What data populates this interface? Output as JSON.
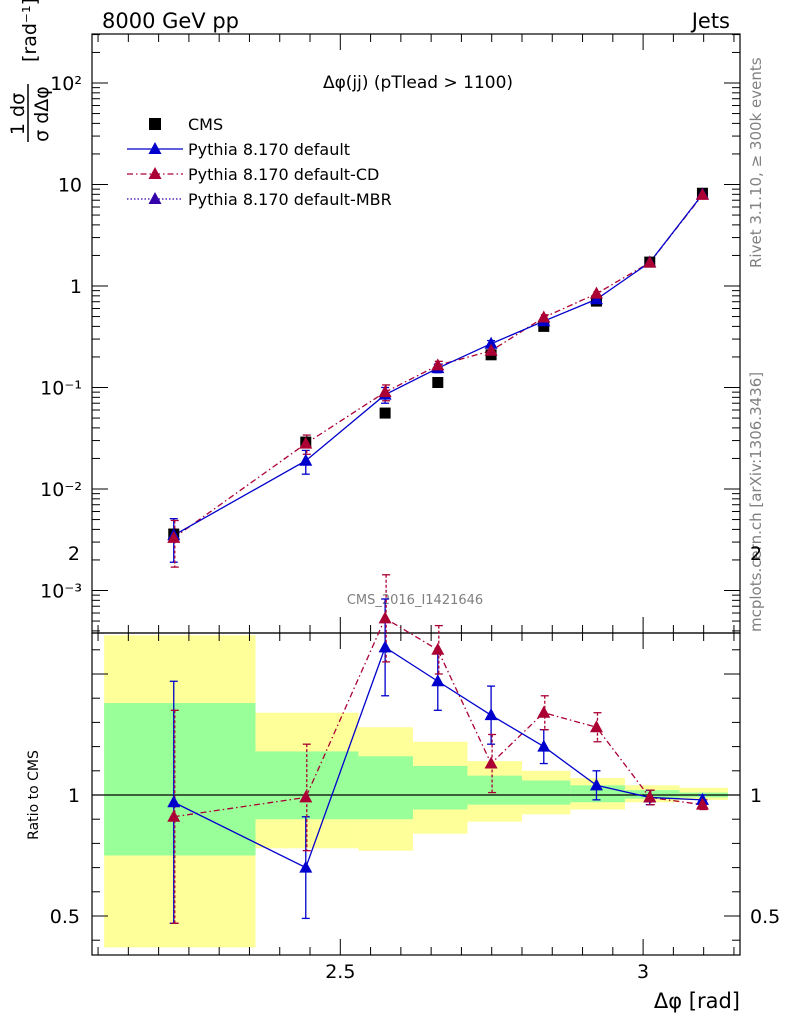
{
  "header": {
    "left": "8000 GeV pp",
    "right": "Jets"
  },
  "side_text": {
    "rivet": "Rivet 3.1.10, ≥ 300k events",
    "mcplots": "mcplots.cern.ch [arXiv:1306.3436]"
  },
  "watermark": "CMS_2016_I1421646",
  "colors": {
    "cms": "#000000",
    "default": "#0000cc",
    "cd": "#aa0033",
    "mbr": "#3300aa",
    "band_inner": "#99ff99",
    "band_outer": "#ffff99"
  },
  "chart_data": [
    {
      "type": "scatter",
      "panel": "main",
      "title": "Δφ(jj) (pTlead >  1100)",
      "ylabel": "1/σ dσ/dΔφ [rad⁻¹]",
      "yscale": "log",
      "ylim": [
        0.0005,
        300
      ],
      "xlim": [
        2.09,
        3.16
      ],
      "ytick_labels": [
        "10⁻³",
        "10⁻²",
        "10⁻¹",
        "1",
        "10",
        "10²"
      ],
      "legend_position": "top-left",
      "series": [
        {
          "name": "CMS",
          "style": "markers",
          "x": [
            2.225,
            2.443,
            2.574,
            2.661,
            2.749,
            2.836,
            2.923,
            3.011,
            3.098
          ],
          "y": [
            0.0036,
            0.029,
            0.056,
            0.112,
            0.21,
            0.4,
            0.71,
            1.72,
            8.2
          ]
        },
        {
          "name": "Pythia 8.170 default",
          "style": "line",
          "x": [
            2.225,
            2.443,
            2.574,
            2.661,
            2.749,
            2.836,
            2.923,
            3.011,
            3.098
          ],
          "y": [
            0.0035,
            0.019,
            0.085,
            0.155,
            0.27,
            0.45,
            0.74,
            1.71,
            8.0
          ],
          "yerr": [
            0.0016,
            0.005,
            0.015,
            0.015,
            0.02,
            0.03,
            0.04,
            0.05,
            0.15
          ]
        },
        {
          "name": "Pythia 8.170 default-CD",
          "style": "dashdot",
          "x": [
            2.225,
            2.443,
            2.574,
            2.661,
            2.749,
            2.836,
            2.923,
            3.011,
            3.098
          ],
          "y": [
            0.0033,
            0.028,
            0.09,
            0.165,
            0.23,
            0.49,
            0.84,
            1.7,
            7.9
          ],
          "yerr": [
            0.0016,
            0.006,
            0.016,
            0.016,
            0.02,
            0.03,
            0.04,
            0.05,
            0.15
          ]
        },
        {
          "name": "Pythia 8.170 default-MBR",
          "style": "dotted",
          "x": [],
          "y": []
        }
      ]
    },
    {
      "type": "line",
      "panel": "ratio",
      "ylabel": "Ratio to CMS",
      "xlabel": "Δφ [rad]",
      "ylim": [
        0.35,
        2.3
      ],
      "xlim": [
        2.09,
        3.16
      ],
      "xticks": [
        2.5,
        3
      ],
      "xtick_labels": [
        "2.5",
        "3"
      ],
      "yticks": [
        0.5,
        1,
        2
      ],
      "ytick_labels": [
        "0.5",
        "1",
        "2"
      ],
      "bins": [
        2.11,
        2.36,
        2.53,
        2.62,
        2.71,
        2.8,
        2.88,
        2.97,
        3.06,
        3.14
      ],
      "band_inner": [
        [
          0.75,
          1.38
        ],
        [
          0.9,
          1.18
        ],
        [
          0.9,
          1.16
        ],
        [
          0.94,
          1.12
        ],
        [
          0.96,
          1.08
        ],
        [
          0.96,
          1.06
        ],
        [
          0.97,
          1.04
        ],
        [
          0.985,
          1.02
        ],
        [
          0.99,
          1.01
        ]
      ],
      "band_outer": [
        [
          0.37,
          1.66
        ],
        [
          0.78,
          1.34
        ],
        [
          0.77,
          1.28
        ],
        [
          0.84,
          1.22
        ],
        [
          0.89,
          1.14
        ],
        [
          0.92,
          1.1
        ],
        [
          0.94,
          1.07
        ],
        [
          0.97,
          1.04
        ],
        [
          0.98,
          1.03
        ]
      ],
      "series": [
        {
          "name": "Pythia 8.170 default",
          "x": [
            2.225,
            2.443,
            2.574,
            2.661,
            2.749,
            2.836,
            2.923,
            3.011,
            3.098
          ],
          "y": [
            0.97,
            0.7,
            1.61,
            1.47,
            1.33,
            1.2,
            1.04,
            0.99,
            0.98
          ],
          "yerr": [
            0.5,
            0.21,
            0.2,
            0.12,
            0.12,
            0.07,
            0.06,
            0.03,
            0.02
          ]
        },
        {
          "name": "Pythia 8.170 default-CD",
          "x": [
            2.225,
            2.443,
            2.574,
            2.661,
            2.749,
            2.836,
            2.923,
            3.011,
            3.098
          ],
          "y": [
            0.91,
            0.99,
            1.73,
            1.6,
            1.13,
            1.34,
            1.28,
            0.99,
            0.96
          ],
          "yerr": [
            0.44,
            0.22,
            0.18,
            0.1,
            0.12,
            0.07,
            0.06,
            0.03,
            0.02
          ]
        }
      ]
    }
  ]
}
